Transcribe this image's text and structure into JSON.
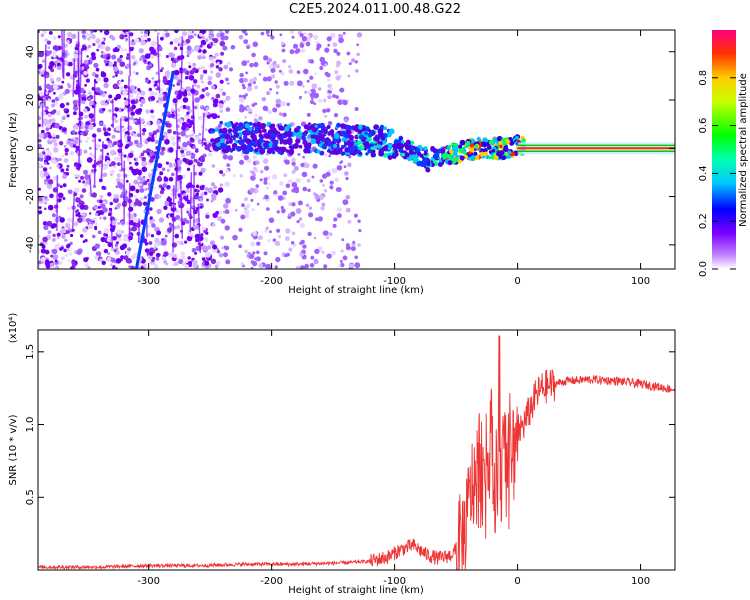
{
  "title": "C2E5.2024.011.00.48.G22",
  "chart_data": [
    {
      "type": "heatmap",
      "xlabel": "Height of straight line (km)",
      "ylabel": "Frequency (Hz)",
      "xlim": [
        -390,
        128
      ],
      "ylim": [
        -50,
        49
      ],
      "xticks": [
        -300,
        -200,
        -100,
        0,
        100
      ],
      "yticks": [
        -40,
        -20,
        0,
        20,
        40
      ],
      "colorbar": {
        "label": "Normalized spectral amplitude",
        "range": [
          0,
          1
        ],
        "ticks": [
          0.0,
          0.2,
          0.4,
          0.6,
          0.8
        ]
      },
      "ridge": {
        "x": [
          -250,
          -200,
          -150,
          -130,
          -110,
          -90,
          -75,
          -60,
          -45,
          -30,
          -20,
          -10,
          0,
          20,
          60,
          100,
          128
        ],
        "y": [
          5,
          4,
          4,
          3,
          3,
          0,
          -4,
          -3,
          -1,
          0,
          0,
          0,
          1,
          0,
          0,
          0,
          0
        ]
      },
      "diagonal_line": {
        "x": [
          -310,
          -280
        ],
        "y": [
          -50,
          32
        ]
      }
    },
    {
      "type": "line",
      "xlabel": "Height of straight line (km)",
      "ylabel": "SNR (10 * v/v)",
      "y_multiplier": "(x10⁴)",
      "xlim": [
        -390,
        128
      ],
      "ylim": [
        0,
        1.65
      ],
      "xticks": [
        -300,
        -200,
        -100,
        0,
        100
      ],
      "yticks": [
        0.5,
        1.0,
        1.5
      ],
      "ytick_labels": [
        "0.5",
        "1.0",
        "1.5"
      ],
      "color": "#ee3333",
      "series": [
        {
          "x": [
            -390,
            -340,
            -300,
            -260,
            -220,
            -180,
            -140,
            -120,
            -105,
            -95,
            -85,
            -75,
            -65,
            -55,
            -48,
            -42,
            -38,
            -34,
            -30,
            -26,
            -22,
            -18,
            -15,
            -12,
            -8,
            -4,
            0,
            5,
            10,
            15,
            20,
            30,
            40,
            60,
            80,
            100,
            128
          ],
          "y": [
            0.02,
            0.02,
            0.03,
            0.03,
            0.04,
            0.04,
            0.05,
            0.06,
            0.09,
            0.14,
            0.17,
            0.11,
            0.08,
            0.1,
            0.15,
            0.3,
            0.55,
            0.65,
            0.85,
            0.7,
            1.0,
            0.6,
            0.8,
            0.75,
            0.9,
            0.85,
            0.95,
            1.0,
            1.1,
            1.2,
            1.25,
            1.28,
            1.3,
            1.31,
            1.3,
            1.28,
            1.24
          ]
        }
      ]
    }
  ]
}
